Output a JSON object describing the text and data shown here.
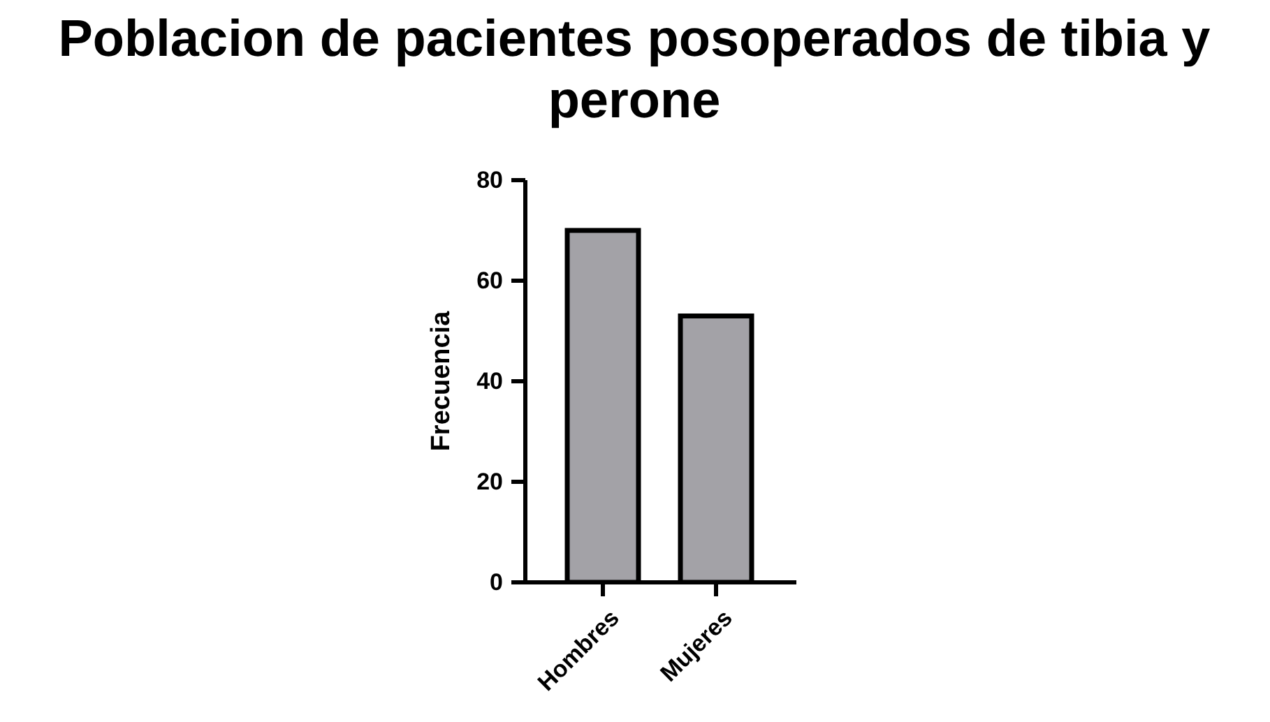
{
  "chart_data": {
    "type": "bar",
    "title": "Poblacion de pacientes posoperados de tibia y perone",
    "ylabel": "Frecuencia",
    "categories": [
      "Hombres",
      "Mujeres"
    ],
    "values": [
      70,
      53
    ],
    "color": "#a3a2a7",
    "ylim": [
      0,
      80
    ],
    "yticks": [
      0,
      20,
      40,
      60,
      80
    ]
  }
}
